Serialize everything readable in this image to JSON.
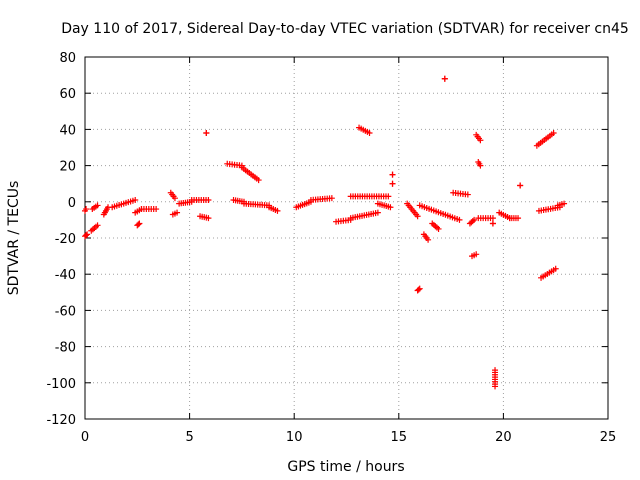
{
  "chart_data": {
    "type": "scatter",
    "title": "Day 110 of 2017, Sidereal Day-to-day VTEC variation (SDTVAR) for receiver cn45",
    "xlabel": "GPS time / hours",
    "ylabel": "SDTVAR / TECUs",
    "xlim": [
      0,
      25
    ],
    "ylim": [
      -120,
      80
    ],
    "xticks": [
      0,
      5,
      10,
      15,
      20,
      25
    ],
    "yticks": [
      -120,
      -100,
      -80,
      -60,
      -40,
      -20,
      0,
      20,
      40,
      60,
      80
    ],
    "grid": true,
    "marker": "+",
    "color": "#ff0000",
    "segments": [
      {
        "x": [
          0.0,
          0.1
        ],
        "y": [
          -19,
          -18
        ]
      },
      {
        "x": [
          0.0,
          0.05
        ],
        "y": [
          -5,
          -4
        ]
      },
      {
        "x": [
          0.3,
          0.6
        ],
        "y": [
          -16,
          -13
        ]
      },
      {
        "x": [
          0.35,
          0.6
        ],
        "y": [
          -4,
          -2
        ]
      },
      {
        "x": [
          0.9,
          1.1
        ],
        "y": [
          -7,
          -3
        ]
      },
      {
        "x": [
          1.3,
          2.4
        ],
        "y": [
          -3,
          1
        ]
      },
      {
        "x": [
          2.4,
          2.7
        ],
        "y": [
          -6,
          -4
        ]
      },
      {
        "x": [
          2.5,
          2.6
        ],
        "y": [
          -13,
          -12
        ]
      },
      {
        "x": [
          2.7,
          3.4
        ],
        "y": [
          -4,
          -4
        ]
      },
      {
        "x": [
          4.1,
          4.3
        ],
        "y": [
          5,
          2
        ]
      },
      {
        "x": [
          4.2,
          4.4
        ],
        "y": [
          -7,
          -6
        ]
      },
      {
        "x": [
          4.5,
          5.1
        ],
        "y": [
          -1,
          0
        ]
      },
      {
        "x": [
          5.1,
          5.9
        ],
        "y": [
          1,
          1
        ]
      },
      {
        "x": [
          5.5,
          5.9
        ],
        "y": [
          -8,
          -9
        ]
      },
      {
        "x": [
          5.8,
          5.8
        ],
        "y": [
          38,
          38
        ]
      },
      {
        "x": [
          6.8,
          7.5
        ],
        "y": [
          21,
          20
        ]
      },
      {
        "x": [
          7.5,
          8.3
        ],
        "y": [
          19,
          12
        ]
      },
      {
        "x": [
          7.1,
          7.6
        ],
        "y": [
          1,
          0
        ]
      },
      {
        "x": [
          7.6,
          8.8
        ],
        "y": [
          -1,
          -2
        ]
      },
      {
        "x": [
          8.8,
          9.2
        ],
        "y": [
          -3,
          -5
        ]
      },
      {
        "x": [
          10.1,
          10.8
        ],
        "y": [
          -3,
          0
        ]
      },
      {
        "x": [
          10.8,
          11.8
        ],
        "y": [
          1,
          2
        ]
      },
      {
        "x": [
          12.0,
          12.7
        ],
        "y": [
          -11,
          -10
        ]
      },
      {
        "x": [
          12.7,
          14.0
        ],
        "y": [
          -9,
          -6
        ]
      },
      {
        "x": [
          12.7,
          14.5
        ],
        "y": [
          3,
          3
        ]
      },
      {
        "x": [
          14.0,
          14.6
        ],
        "y": [
          -1,
          -3
        ]
      },
      {
        "x": [
          13.1,
          13.6
        ],
        "y": [
          41,
          38
        ]
      },
      {
        "x": [
          14.7,
          14.7
        ],
        "y": [
          15,
          15
        ]
      },
      {
        "x": [
          14.7,
          14.7
        ],
        "y": [
          10,
          10
        ]
      },
      {
        "x": [
          15.4,
          15.9
        ],
        "y": [
          -1,
          -8
        ]
      },
      {
        "x": [
          15.9,
          16.0
        ],
        "y": [
          -49,
          -48
        ]
      },
      {
        "x": [
          16.0,
          17.9
        ],
        "y": [
          -2,
          -10
        ]
      },
      {
        "x": [
          16.2,
          16.4
        ],
        "y": [
          -18,
          -21
        ]
      },
      {
        "x": [
          16.6,
          16.9
        ],
        "y": [
          -12,
          -15
        ]
      },
      {
        "x": [
          17.2,
          17.2
        ],
        "y": [
          68,
          68
        ]
      },
      {
        "x": [
          17.6,
          18.3
        ],
        "y": [
          5,
          4
        ]
      },
      {
        "x": [
          18.4,
          18.6
        ],
        "y": [
          -12,
          -10
        ]
      },
      {
        "x": [
          18.5,
          18.7
        ],
        "y": [
          -30,
          -29
        ]
      },
      {
        "x": [
          18.7,
          18.9
        ],
        "y": [
          37,
          34
        ]
      },
      {
        "x": [
          18.8,
          18.9
        ],
        "y": [
          22,
          20
        ]
      },
      {
        "x": [
          18.8,
          19.5
        ],
        "y": [
          -9,
          -9
        ]
      },
      {
        "x": [
          19.5,
          19.5
        ],
        "y": [
          -12,
          -12
        ]
      },
      {
        "x": [
          19.6,
          19.6
        ],
        "y": [
          -93,
          -102
        ]
      },
      {
        "x": [
          19.8,
          20.3
        ],
        "y": [
          -6,
          -9
        ]
      },
      {
        "x": [
          20.3,
          20.7
        ],
        "y": [
          -9,
          -9
        ]
      },
      {
        "x": [
          20.8,
          20.8
        ],
        "y": [
          9,
          9
        ]
      },
      {
        "x": [
          21.6,
          22.4
        ],
        "y": [
          31,
          38
        ]
      },
      {
        "x": [
          21.7,
          22.7
        ],
        "y": [
          -5,
          -3
        ]
      },
      {
        "x": [
          21.8,
          22.5
        ],
        "y": [
          -42,
          -37
        ]
      },
      {
        "x": [
          22.6,
          22.9
        ],
        "y": [
          -2,
          -1
        ]
      }
    ]
  }
}
